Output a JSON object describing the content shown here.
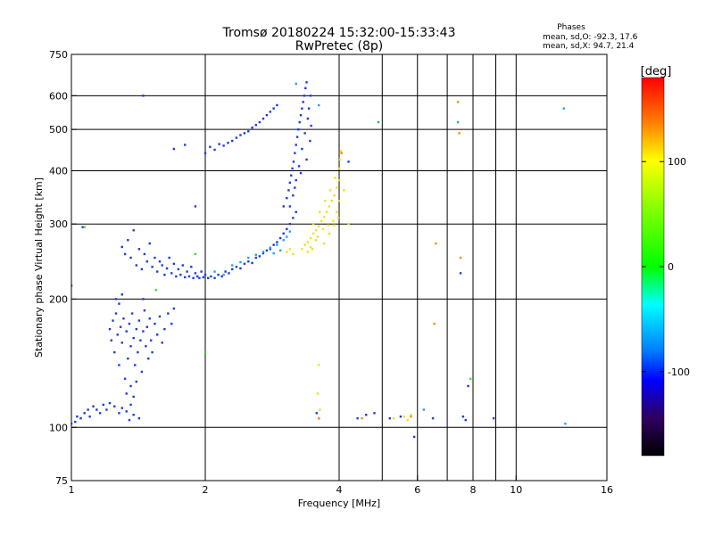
{
  "chart_data": {
    "type": "scatter",
    "title": "Tromsø 20180224 15:32:00-15:33:43",
    "subtitle": "RwPretec (8p)",
    "stats": {
      "heading": "Phases",
      "line_o": "mean, sd,O: -92.3, 17.6",
      "line_x": "mean, sd,X:  94.7, 21.4"
    },
    "xlabel": "Frequency [MHz]",
    "ylabel": "Stationary phase Virtual Height [km]",
    "x_scale": "log",
    "y_scale": "log",
    "xlim": [
      1,
      16
    ],
    "ylim": [
      75,
      750
    ],
    "x_ticks": [
      {
        "value": 1,
        "label": "1"
      },
      {
        "value": 2,
        "label": "2"
      },
      {
        "value": 4,
        "label": "4"
      },
      {
        "value": 6,
        "label": "6"
      },
      {
        "value": 8,
        "label": "8"
      },
      {
        "value": 10,
        "label": "10"
      },
      {
        "value": 16,
        "label": "16"
      }
    ],
    "x_grid": [
      2,
      4,
      5,
      6,
      7,
      8,
      9,
      10
    ],
    "y_ticks": [
      {
        "value": 75,
        "label": "75"
      },
      {
        "value": 100,
        "label": "100"
      },
      {
        "value": 200,
        "label": "200"
      },
      {
        "value": 300,
        "label": "300"
      },
      {
        "value": 400,
        "label": "400"
      },
      {
        "value": 500,
        "label": "500"
      },
      {
        "value": 600,
        "label": "600"
      },
      {
        "value": 750,
        "label": "750"
      }
    ],
    "y_grid": [
      100,
      200,
      300,
      400,
      500,
      600
    ],
    "grid": true,
    "colorbar": {
      "label": "[deg]",
      "range": [
        -180,
        180
      ],
      "ticks": [
        {
          "value": 100,
          "label": "100"
        },
        {
          "value": 0,
          "label": "0"
        },
        {
          "value": -100,
          "label": "-100"
        }
      ],
      "stops": [
        {
          "at": 0.0,
          "color": "#ff0000"
        },
        {
          "at": 0.12,
          "color": "#ff8000"
        },
        {
          "at": 0.22,
          "color": "#ffff00"
        },
        {
          "at": 0.35,
          "color": "#80ff00"
        },
        {
          "at": 0.5,
          "color": "#00ff00"
        },
        {
          "at": 0.6,
          "color": "#00ffff"
        },
        {
          "at": 0.72,
          "color": "#0080ff"
        },
        {
          "at": 0.8,
          "color": "#0000ff"
        },
        {
          "at": 0.9,
          "color": "#300060"
        },
        {
          "at": 1.0,
          "color": "#000000"
        }
      ]
    },
    "series": [
      {
        "color": "#1a3ce0",
        "points": [
          [
            1.0,
            215
          ],
          [
            1.0,
            102
          ],
          [
            1.02,
            103
          ],
          [
            1.03,
            106
          ],
          [
            1.05,
            105
          ],
          [
            1.07,
            108
          ],
          [
            1.09,
            110
          ],
          [
            1.1,
            106
          ],
          [
            1.12,
            112
          ],
          [
            1.14,
            110
          ],
          [
            1.16,
            108
          ],
          [
            1.18,
            113
          ],
          [
            1.2,
            110
          ],
          [
            1.22,
            114
          ],
          [
            1.25,
            112
          ],
          [
            1.28,
            108
          ],
          [
            1.3,
            111
          ],
          [
            1.33,
            109
          ],
          [
            1.36,
            113
          ],
          [
            1.38,
            107
          ],
          [
            1.35,
            104
          ],
          [
            1.42,
            105
          ],
          [
            1.22,
            170
          ],
          [
            1.23,
            160
          ],
          [
            1.24,
            178
          ],
          [
            1.25,
            150
          ],
          [
            1.26,
            185
          ],
          [
            1.27,
            165
          ],
          [
            1.28,
            140
          ],
          [
            1.29,
            172
          ],
          [
            1.3,
            158
          ],
          [
            1.31,
            180
          ],
          [
            1.32,
            130
          ],
          [
            1.33,
            168
          ],
          [
            1.34,
            145
          ],
          [
            1.35,
            175
          ],
          [
            1.36,
            155
          ],
          [
            1.37,
            185
          ],
          [
            1.38,
            162
          ],
          [
            1.39,
            140
          ],
          [
            1.4,
            170
          ],
          [
            1.41,
            150
          ],
          [
            1.42,
            178
          ],
          [
            1.43,
            160
          ],
          [
            1.44,
            135
          ],
          [
            1.45,
            168
          ],
          [
            1.46,
            188
          ],
          [
            1.47,
            155
          ],
          [
            1.48,
            172
          ],
          [
            1.49,
            145
          ],
          [
            1.5,
            180
          ],
          [
            1.51,
            160
          ],
          [
            1.52,
            150
          ],
          [
            1.54,
            175
          ],
          [
            1.56,
            165
          ],
          [
            1.58,
            182
          ],
          [
            1.6,
            158
          ],
          [
            1.62,
            170
          ],
          [
            1.65,
            185
          ],
          [
            1.68,
            175
          ],
          [
            1.7,
            190
          ],
          [
            1.26,
            200
          ],
          [
            1.3,
            205
          ],
          [
            1.28,
            195
          ],
          [
            1.36,
            125
          ],
          [
            1.33,
            120
          ],
          [
            1.38,
            118
          ],
          [
            1.4,
            128
          ],
          [
            1.3,
            265
          ],
          [
            1.32,
            255
          ],
          [
            1.34,
            275
          ],
          [
            1.36,
            250
          ],
          [
            1.38,
            290
          ],
          [
            1.4,
            240
          ],
          [
            1.42,
            262
          ],
          [
            1.44,
            235
          ],
          [
            1.46,
            255
          ],
          [
            1.48,
            245
          ],
          [
            1.5,
            270
          ],
          [
            1.52,
            238
          ],
          [
            1.54,
            250
          ],
          [
            1.56,
            232
          ],
          [
            1.58,
            245
          ],
          [
            1.6,
            240
          ],
          [
            1.62,
            228
          ],
          [
            1.64,
            236
          ],
          [
            1.66,
            250
          ],
          [
            1.68,
            230
          ],
          [
            1.7,
            242
          ],
          [
            1.72,
            226
          ],
          [
            1.74,
            235
          ],
          [
            1.76,
            228
          ],
          [
            1.78,
            240
          ],
          [
            1.8,
            225
          ],
          [
            1.82,
            232
          ],
          [
            1.84,
            226
          ],
          [
            1.86,
            238
          ],
          [
            1.88,
            224
          ],
          [
            1.9,
            230
          ],
          [
            1.92,
            226
          ],
          [
            1.94,
            224
          ],
          [
            1.96,
            232
          ],
          [
            1.98,
            225
          ],
          [
            2.0,
            228
          ],
          [
            2.03,
            224
          ],
          [
            2.06,
            226
          ],
          [
            2.1,
            224
          ],
          [
            2.14,
            228
          ],
          [
            2.18,
            226
          ],
          [
            2.22,
            232
          ],
          [
            2.26,
            230
          ],
          [
            2.3,
            235
          ],
          [
            2.35,
            238
          ],
          [
            2.4,
            236
          ],
          [
            2.45,
            242
          ],
          [
            2.5,
            245
          ],
          [
            2.55,
            243
          ],
          [
            2.6,
            250
          ],
          [
            2.65,
            252
          ],
          [
            2.7,
            256
          ],
          [
            2.75,
            260
          ],
          [
            2.8,
            262
          ],
          [
            2.85,
            268
          ],
          [
            2.9,
            272
          ],
          [
            2.95,
            278
          ],
          [
            3.0,
            285
          ],
          [
            3.05,
            292
          ],
          [
            3.1,
            300
          ],
          [
            3.15,
            310
          ],
          [
            3.2,
            320
          ],
          [
            3.0,
            330
          ],
          [
            3.05,
            345
          ],
          [
            3.08,
            360
          ],
          [
            3.1,
            375
          ],
          [
            3.12,
            390
          ],
          [
            3.14,
            405
          ],
          [
            3.16,
            420
          ],
          [
            3.18,
            440
          ],
          [
            3.2,
            460
          ],
          [
            3.22,
            480
          ],
          [
            3.24,
            500
          ],
          [
            3.26,
            520
          ],
          [
            3.28,
            540
          ],
          [
            3.3,
            560
          ],
          [
            3.32,
            580
          ],
          [
            3.34,
            600
          ],
          [
            3.36,
            625
          ],
          [
            3.38,
            645
          ],
          [
            3.15,
            350
          ],
          [
            3.2,
            380
          ],
          [
            3.25,
            410
          ],
          [
            3.3,
            450
          ],
          [
            3.35,
            490
          ],
          [
            3.4,
            530
          ],
          [
            3.42,
            560
          ],
          [
            3.45,
            600
          ],
          [
            3.1,
            330
          ],
          [
            3.18,
            365
          ],
          [
            3.28,
            395
          ],
          [
            3.38,
            425
          ],
          [
            3.44,
            470
          ],
          [
            3.46,
            510
          ],
          [
            2.0,
            440
          ],
          [
            2.05,
            455
          ],
          [
            2.1,
            448
          ],
          [
            2.15,
            462
          ],
          [
            2.2,
            458
          ],
          [
            2.25,
            465
          ],
          [
            2.3,
            470
          ],
          [
            2.35,
            478
          ],
          [
            2.4,
            485
          ],
          [
            2.45,
            490
          ],
          [
            2.5,
            495
          ],
          [
            2.55,
            505
          ],
          [
            2.6,
            512
          ],
          [
            2.65,
            520
          ],
          [
            2.7,
            530
          ],
          [
            2.75,
            540
          ],
          [
            2.8,
            550
          ],
          [
            2.85,
            560
          ],
          [
            2.9,
            570
          ],
          [
            1.7,
            450
          ],
          [
            1.8,
            460
          ],
          [
            1.9,
            330
          ],
          [
            1.45,
            600
          ],
          [
            1.06,
            295
          ],
          [
            1.45,
            200
          ],
          [
            3.56,
            108
          ],
          [
            3.6,
            105
          ],
          [
            4.4,
            105
          ],
          [
            4.6,
            107
          ],
          [
            4.8,
            108
          ],
          [
            5.2,
            105
          ],
          [
            5.5,
            106
          ],
          [
            6.5,
            105
          ],
          [
            7.6,
            106
          ],
          [
            7.7,
            104
          ],
          [
            8.9,
            105
          ],
          [
            7.5,
            230
          ],
          [
            7.8,
            125
          ],
          [
            4.2,
            420
          ],
          [
            5.9,
            95
          ]
        ]
      },
      {
        "color": "#1ea0ff",
        "points": [
          [
            2.1,
            232
          ],
          [
            2.2,
            228
          ],
          [
            2.3,
            240
          ],
          [
            2.4,
            244
          ],
          [
            2.5,
            250
          ],
          [
            2.6,
            254
          ],
          [
            2.7,
            258
          ],
          [
            2.8,
            264
          ],
          [
            2.9,
            268
          ],
          [
            3.0,
            275
          ],
          [
            3.05,
            280
          ],
          [
            3.1,
            288
          ],
          [
            2.95,
            260
          ],
          [
            2.85,
            256
          ],
          [
            3.2,
            640
          ],
          [
            3.6,
            570
          ],
          [
            4.9,
            520
          ],
          [
            7.4,
            520
          ],
          [
            12.8,
            560
          ],
          [
            12.9,
            102
          ],
          [
            6.2,
            110
          ]
        ]
      },
      {
        "color": "#f0e020",
        "points": [
          [
            3.05,
            258
          ],
          [
            3.1,
            262
          ],
          [
            3.15,
            255
          ],
          [
            3.3,
            262
          ],
          [
            3.35,
            268
          ],
          [
            3.4,
            272
          ],
          [
            3.45,
            278
          ],
          [
            3.5,
            285
          ],
          [
            3.55,
            290
          ],
          [
            3.6,
            296
          ],
          [
            3.65,
            305
          ],
          [
            3.7,
            312
          ],
          [
            3.75,
            320
          ],
          [
            3.8,
            330
          ],
          [
            3.85,
            340
          ],
          [
            3.9,
            350
          ],
          [
            3.95,
            365
          ],
          [
            4.0,
            380
          ],
          [
            3.62,
            320
          ],
          [
            3.72,
            340
          ],
          [
            3.82,
            360
          ],
          [
            3.92,
            385
          ],
          [
            4.0,
            405
          ],
          [
            4.02,
            425
          ],
          [
            4.04,
            445
          ],
          [
            3.7,
            270
          ],
          [
            3.8,
            285
          ],
          [
            3.9,
            298
          ],
          [
            3.98,
            310
          ],
          [
            3.5,
            300
          ],
          [
            3.45,
            265
          ],
          [
            3.55,
            275
          ],
          [
            4.0,
            340
          ],
          [
            3.95,
            320
          ],
          [
            3.88,
            305
          ],
          [
            3.78,
            298
          ],
          [
            3.68,
            292
          ],
          [
            3.58,
            280
          ],
          [
            3.48,
            262
          ],
          [
            3.4,
            258
          ],
          [
            3.6,
            140
          ],
          [
            3.58,
            120
          ],
          [
            3.62,
            110
          ],
          [
            5.6,
            106
          ],
          [
            5.7,
            104
          ],
          [
            5.8,
            107
          ],
          [
            5.3,
            105
          ],
          [
            4.2,
            300
          ],
          [
            4.1,
            360
          ]
        ]
      },
      {
        "color": "#ff8a00",
        "points": [
          [
            7.4,
            580
          ],
          [
            7.45,
            490
          ],
          [
            7.5,
            250
          ],
          [
            6.6,
            270
          ],
          [
            6.55,
            175
          ],
          [
            5.8,
            106
          ],
          [
            4.5,
            105
          ],
          [
            3.6,
            105
          ],
          [
            4.05,
            440
          ]
        ]
      },
      {
        "color": "#30e030",
        "points": [
          [
            1.07,
            295
          ],
          [
            1.55,
            210
          ],
          [
            1.9,
            255
          ],
          [
            2.0,
            150
          ],
          [
            7.9,
            130
          ]
        ]
      }
    ]
  }
}
